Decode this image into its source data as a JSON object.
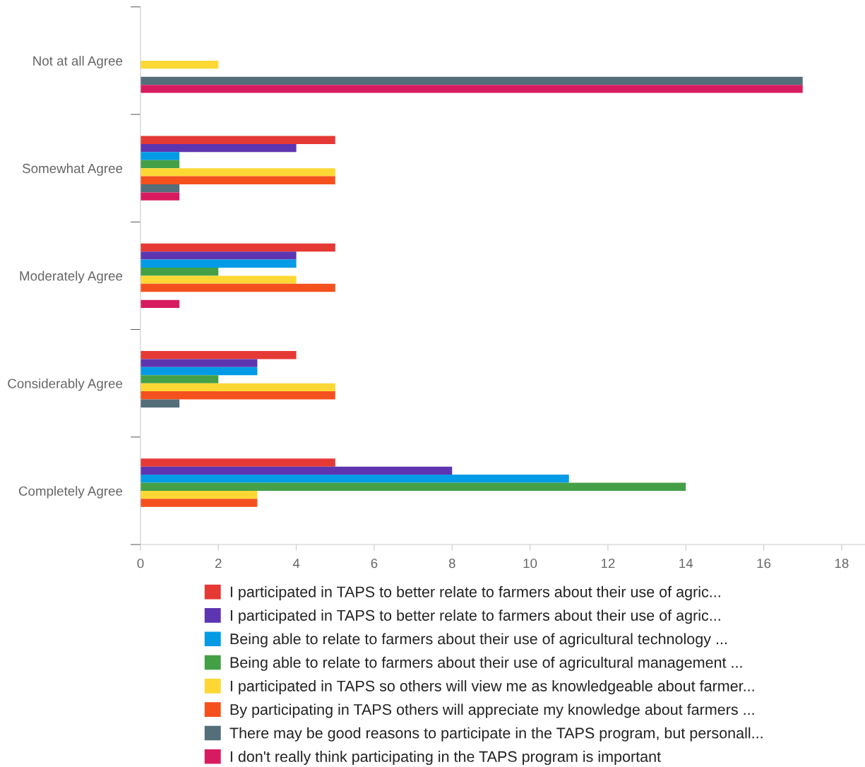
{
  "chart_data": {
    "type": "bar",
    "orientation": "horizontal",
    "categories": [
      "Not at all Agree",
      "Somewhat Agree",
      "Moderately Agree",
      "Considerably Agree",
      "Completely Agree"
    ],
    "series": [
      {
        "name": "I participated in TAPS to better relate to farmers about their use of agric...",
        "color": "#e53935",
        "values": [
          0,
          5,
          5,
          4,
          5
        ]
      },
      {
        "name": "I participated in TAPS to better relate to farmers about their use of agric...",
        "color": "#5e35b1",
        "values": [
          0,
          4,
          4,
          3,
          8
        ]
      },
      {
        "name": "Being able to relate to farmers about their use of agricultural technology ...",
        "color": "#039be5",
        "values": [
          0,
          1,
          4,
          3,
          11
        ]
      },
      {
        "name": "Being able to relate to farmers about their use of agricultural management ...",
        "color": "#43a047",
        "values": [
          0,
          1,
          2,
          2,
          14
        ]
      },
      {
        "name": "I participated in TAPS so others will view me as knowledgeable about farmer...",
        "color": "#fdd835",
        "values": [
          2,
          5,
          4,
          5,
          3
        ]
      },
      {
        "name": "By participating in TAPS others will appreciate my knowledge about farmers ...",
        "color": "#f4511e",
        "values": [
          0,
          5,
          5,
          5,
          3
        ]
      },
      {
        "name": "There may be good reasons to participate in the TAPS program, but personall...",
        "color": "#546e7a",
        "values": [
          17,
          1,
          0,
          1,
          0
        ]
      },
      {
        "name": "I don't really think participating in the TAPS program is important",
        "color": "#d81b60",
        "values": [
          17,
          1,
          1,
          0,
          0
        ]
      }
    ],
    "xlim": [
      0,
      18.6
    ],
    "xticks": [
      0,
      2,
      4,
      6,
      8,
      10,
      12,
      14,
      16,
      18
    ],
    "grid": false,
    "legend": "bottom"
  }
}
